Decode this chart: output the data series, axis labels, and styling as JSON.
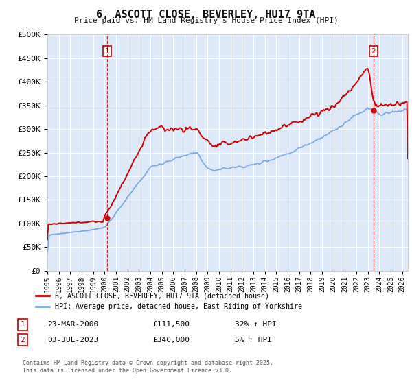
{
  "title": "6, ASCOTT CLOSE, BEVERLEY, HU17 9TA",
  "subtitle": "Price paid vs. HM Land Registry's House Price Index (HPI)",
  "ylabel_ticks": [
    "£0",
    "£50K",
    "£100K",
    "£150K",
    "£200K",
    "£250K",
    "£300K",
    "£350K",
    "£400K",
    "£450K",
    "£500K"
  ],
  "ytick_values": [
    0,
    50000,
    100000,
    150000,
    200000,
    250000,
    300000,
    350000,
    400000,
    450000,
    500000
  ],
  "xlim_start": 1995.0,
  "xlim_end": 2026.5,
  "ylim": [
    0,
    500000
  ],
  "hpi_color": "#7aaadd",
  "price_color": "#cc0000",
  "vline_color": "#cc0000",
  "marker1_x": 2000.22,
  "marker1_y": 111500,
  "marker2_x": 2023.5,
  "marker2_y": 340000,
  "legend_label1": "6, ASCOTT CLOSE, BEVERLEY, HU17 9TA (detached house)",
  "legend_label2": "HPI: Average price, detached house, East Riding of Yorkshire",
  "annotation1": [
    "1",
    "23-MAR-2000",
    "£111,500",
    "32% ↑ HPI"
  ],
  "annotation2": [
    "2",
    "03-JUL-2023",
    "£340,000",
    "5% ↑ HPI"
  ],
  "footer": "Contains HM Land Registry data © Crown copyright and database right 2025.\nThis data is licensed under the Open Government Licence v3.0.",
  "background_color": "#ffffff",
  "plot_bg_color": "#dde8f8",
  "grid_color": "#ffffff"
}
